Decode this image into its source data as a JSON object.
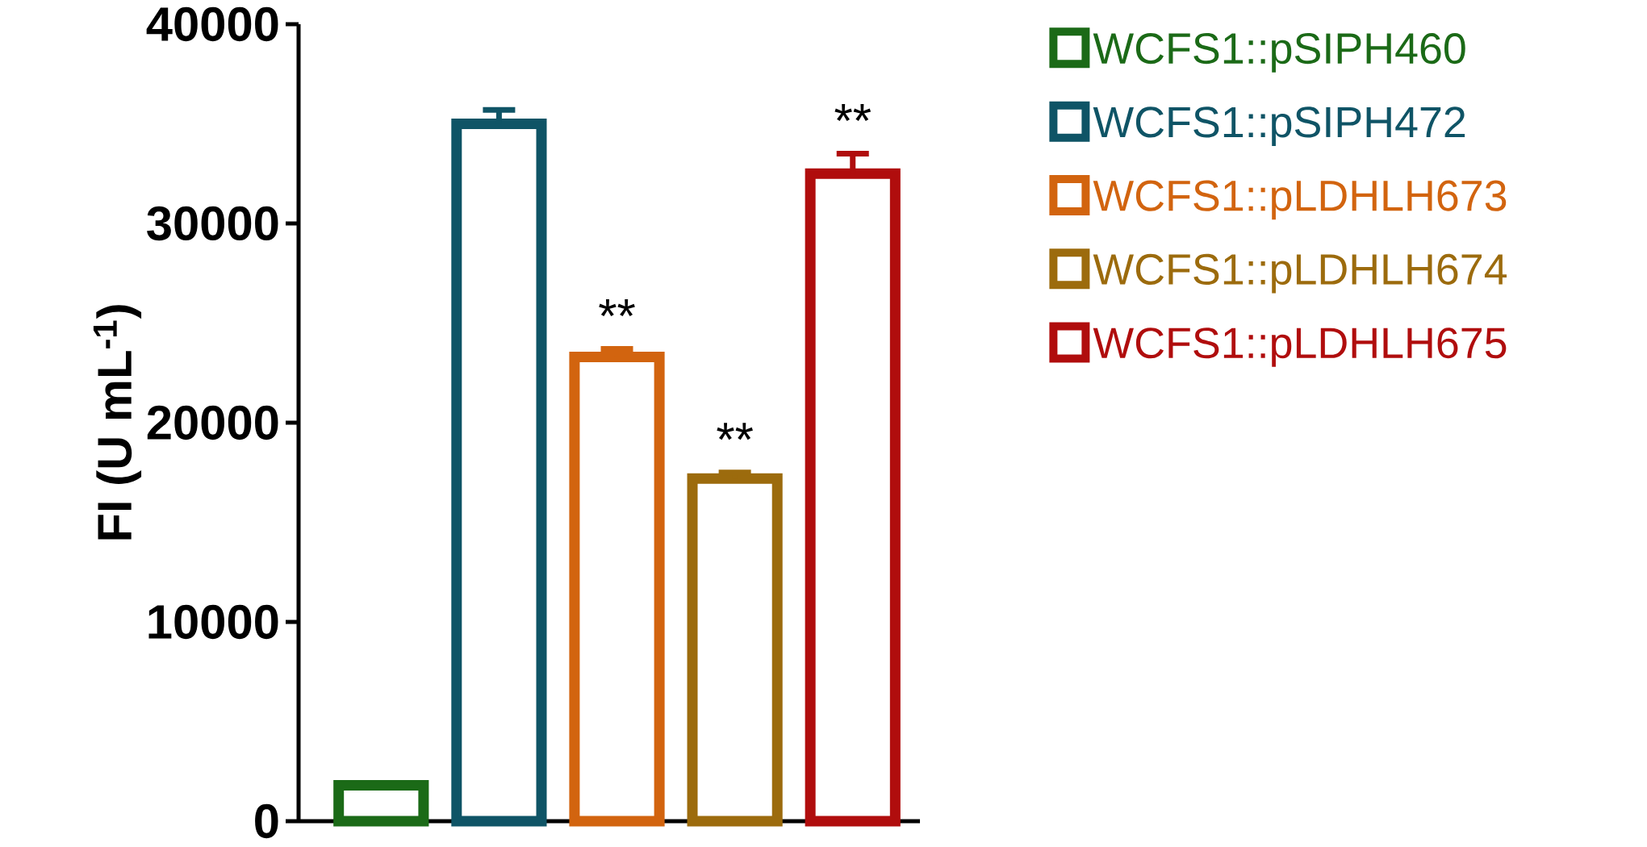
{
  "chart_data": {
    "type": "bar",
    "ylabel": "FI (U mL$^{-1}$)",
    "categories": [
      null,
      null,
      null,
      null,
      null
    ],
    "series": [
      {
        "name": "WCFS1::pSIPH460",
        "color": "#1b6a17",
        "values": [
          1800,
          null,
          null,
          null,
          null
        ],
        "errors": [
          null,
          null,
          null,
          null,
          null
        ]
      },
      {
        "name": "WCFS1::pSIPH472",
        "color": "#0f5466",
        "values": [
          null,
          35000,
          null,
          null,
          null
        ],
        "errors": [
          null,
          700,
          null,
          null,
          null
        ]
      },
      {
        "name": "WCFS1::pLDHLH673",
        "color": "#d2640f",
        "values": [
          null,
          null,
          23300,
          null,
          null
        ],
        "errors": [
          null,
          null,
          400,
          null,
          null
        ]
      },
      {
        "name": "WCFS1::pLDHLH674",
        "color": "#9c6b0d",
        "values": [
          null,
          null,
          null,
          17200,
          null
        ],
        "errors": [
          null,
          null,
          null,
          300,
          null
        ]
      },
      {
        "name": "WCFS1::pLDHLH675",
        "color": "#b00d0d",
        "values": [
          null,
          null,
          null,
          null,
          32500
        ],
        "errors": [
          null,
          null,
          null,
          null,
          1000
        ]
      }
    ],
    "annotations": [
      "**",
      "**",
      "**"
    ],
    "ylim": [
      0,
      40000
    ],
    "yticks": [
      0,
      10000,
      20000,
      30000,
      40000
    ],
    "grid": false,
    "legend": "right"
  }
}
